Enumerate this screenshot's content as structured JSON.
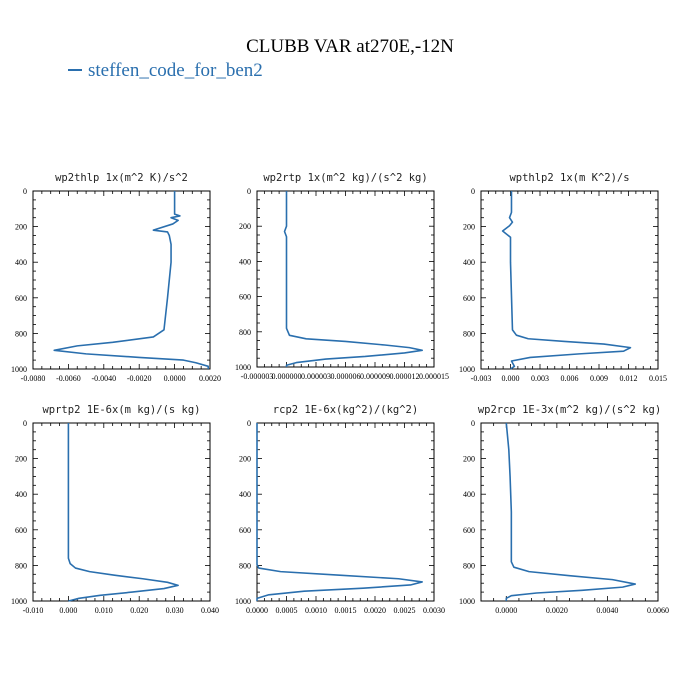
{
  "title": "CLUBB VAR at270E,-12N",
  "legend": {
    "label": "steffen_code_for_ben2",
    "color": "#2a6fae"
  },
  "chart_data": [
    {
      "type": "line",
      "title": "wp2thlp   1x(m^2 K)/s^2",
      "xlim": [
        -0.008,
        0.002
      ],
      "xticks": [
        "-0.0080",
        "-0.0060",
        "-0.0040",
        "-0.0020",
        "0.0000",
        "0.0020"
      ],
      "xtick_values": [
        -0.008,
        -0.006,
        -0.004,
        -0.002,
        0.0,
        0.002
      ],
      "ylim": [
        0,
        1000
      ],
      "yticks": [
        "0",
        "200",
        "400",
        "600",
        "800",
        "1000"
      ],
      "series": [
        {
          "x": [
            0.0,
            0.0,
            0.0003,
            -0.0002,
            0.0002,
            -0.0001,
            -0.0012,
            -0.0004,
            -0.0003,
            -0.0002,
            -0.0002,
            -0.0004,
            -0.0006,
            -0.0012,
            -0.0035,
            -0.0055,
            -0.0068,
            -0.005,
            -0.002,
            0.0005,
            0.0012,
            0.0019,
            0.0019
          ],
          "y": [
            0,
            130,
            140,
            150,
            165,
            185,
            220,
            230,
            250,
            300,
            400,
            600,
            780,
            820,
            850,
            870,
            895,
            915,
            935,
            950,
            965,
            985,
            1000
          ]
        }
      ]
    },
    {
      "type": "line",
      "title": "wp2rtp   1x(m^2 kg)/(s^2 kg)",
      "xlim": [
        -3e-06,
        1.5e-05
      ],
      "xticks": [
        "-0.000003",
        "0.000000",
        "0.000003",
        "0.000006",
        "0.000009",
        "0.000012",
        "0.000015"
      ],
      "xtick_values": [
        -3e-06,
        0.0,
        3e-06,
        6e-06,
        9e-06,
        1.2e-05,
        1.5e-05
      ],
      "ylim": [
        0,
        1000
      ],
      "yticks": [
        "0",
        "200",
        "400",
        "600",
        "800",
        "1000"
      ],
      "series": [
        {
          "x": [
            0.0,
            0.0,
            -2e-07,
            0.0,
            0.0,
            0.0,
            3e-07,
            2e-06,
            6e-06,
            1e-05,
            1.25e-05,
            1.38e-05,
            1.2e-05,
            8e-06,
            4e-06,
            1e-06,
            0.0,
            0.0
          ],
          "y": [
            0,
            200,
            230,
            260,
            500,
            780,
            820,
            840,
            855,
            875,
            890,
            905,
            920,
            940,
            955,
            975,
            990,
            1000
          ]
        }
      ]
    },
    {
      "type": "line",
      "title": "wpthlp2   1x(m K^2)/s",
      "xlim": [
        -0.003,
        0.015
      ],
      "xticks": [
        "-0.003",
        "0.000",
        "0.003",
        "0.006",
        "0.009",
        "0.012",
        "0.015"
      ],
      "xtick_values": [
        -0.003,
        0.0,
        0.003,
        0.006,
        0.009,
        0.012,
        0.015
      ],
      "ylim": [
        0,
        1000
      ],
      "yticks": [
        "0",
        "200",
        "400",
        "600",
        "800",
        "1000"
      ],
      "series": [
        {
          "x": [
            0.0001,
            0.0001,
            -0.0001,
            0.0002,
            -0.0001,
            -0.0008,
            0.0,
            0.0,
            0.0002,
            0.0006,
            0.0018,
            0.0055,
            0.0095,
            0.0122,
            0.0115,
            0.007,
            0.002,
            0.0001,
            0.0004,
            0.0
          ],
          "y": [
            0,
            120,
            150,
            175,
            195,
            225,
            260,
            400,
            780,
            810,
            830,
            845,
            860,
            880,
            900,
            915,
            935,
            955,
            985,
            1000
          ]
        }
      ]
    },
    {
      "type": "line",
      "title": "wprtp2   1E-6x(m kg)/(s kg)",
      "xlim": [
        -0.01,
        0.04
      ],
      "xticks": [
        "-0.010",
        "0.000",
        "0.010",
        "0.020",
        "0.030",
        "0.040"
      ],
      "xtick_values": [
        -0.01,
        0.0,
        0.01,
        0.02,
        0.03,
        0.04
      ],
      "ylim": [
        0,
        1000
      ],
      "yticks": [
        "0",
        "200",
        "400",
        "600",
        "800",
        "1000"
      ],
      "series": [
        {
          "x": [
            0.0,
            0.0,
            0.0005,
            0.002,
            0.006,
            0.013,
            0.021,
            0.028,
            0.031,
            0.027,
            0.018,
            0.009,
            0.003,
            0.001,
            0.0
          ],
          "y": [
            0,
            760,
            790,
            815,
            835,
            855,
            875,
            895,
            912,
            930,
            950,
            968,
            985,
            995,
            1000
          ]
        }
      ]
    },
    {
      "type": "line",
      "title": "rcp2   1E-6x(kg^2)/(kg^2)",
      "xlim": [
        0.0,
        0.003
      ],
      "xticks": [
        "0.0000",
        "0.0005",
        "0.0010",
        "0.0015",
        "0.0020",
        "0.0025",
        "0.0030"
      ],
      "xtick_values": [
        0.0,
        0.0005,
        0.001,
        0.0015,
        0.002,
        0.0025,
        0.003
      ],
      "ylim": [
        0,
        1000
      ],
      "yticks": [
        "0",
        "200",
        "400",
        "600",
        "800",
        "1000"
      ],
      "series": [
        {
          "x": [
            0.0,
            0.0,
            3e-05,
            0.0004,
            0.0014,
            0.0024,
            0.0028,
            0.0026,
            0.0018,
            0.0008,
            0.0002,
            0.0,
            0.0
          ],
          "y": [
            0,
            795,
            815,
            835,
            855,
            875,
            893,
            910,
            928,
            945,
            965,
            985,
            1000
          ]
        }
      ]
    },
    {
      "type": "line",
      "title": "wp2rcp   1E-3x(m^2 kg)/(s^2 kg)",
      "xlim": [
        -0.001,
        0.006
      ],
      "xticks": [
        "0.0000",
        "0.0020",
        "0.0040",
        "0.0060"
      ],
      "xtick_values": [
        0.0,
        0.002,
        0.004,
        0.006
      ],
      "ylim": [
        0,
        1000
      ],
      "yticks": [
        "0",
        "200",
        "400",
        "600",
        "800",
        "1000"
      ],
      "series": [
        {
          "x": [
            0.0,
            0.0001,
            0.00015,
            0.0002,
            0.0002,
            0.0003,
            0.0009,
            0.0025,
            0.0042,
            0.0051,
            0.0046,
            0.003,
            0.0012,
            0.0002,
            0.0,
            0.0
          ],
          "y": [
            0,
            150,
            300,
            500,
            780,
            810,
            835,
            858,
            880,
            905,
            922,
            940,
            955,
            970,
            985,
            1000
          ]
        }
      ]
    }
  ]
}
